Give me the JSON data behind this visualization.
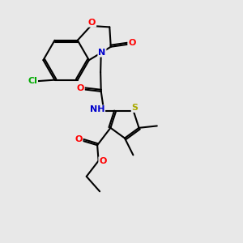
{
  "bg_color": "#e8e8e8",
  "atom_colors": {
    "O": "#ff0000",
    "N": "#0000cc",
    "S": "#aaaa00",
    "Cl": "#00aa00",
    "C": "#000000",
    "H": "#777777"
  },
  "figsize": [
    3.0,
    3.0
  ],
  "dpi": 100
}
